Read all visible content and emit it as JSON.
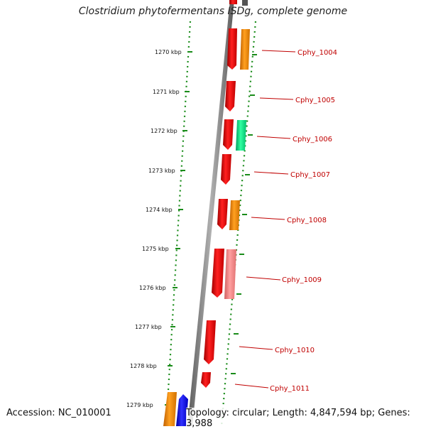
{
  "title": "Clostridium phytofermentans ISDg, complete genome",
  "accession_text": "Accession: NC_010001",
  "summary_text": "Topology: circular; Length: 4,847,594 bp; Genes: 3,988",
  "colors": {
    "backbone": "#808080",
    "ruler_dots": "#1a8c1a",
    "ruler_ticks": "#1a8c1a",
    "gene_red": "#ff0000",
    "gene_orange": "#ff8c00",
    "gene_green": "#00e68a",
    "gene_pink": "#f08080",
    "gene_blue": "#0000ff",
    "label": "#c00000"
  },
  "ruler": {
    "ticks": [
      "1270 kbp",
      "1271 kbp",
      "1272 kbp",
      "1273 kbp",
      "1274 kbp",
      "1275 kbp",
      "1276 kbp",
      "1277 kbp",
      "1278 kbp",
      "1279 kbp"
    ]
  },
  "genes": [
    {
      "label": "Cphy_1004",
      "color": "red"
    },
    {
      "label": "Cphy_1005",
      "color": "red"
    },
    {
      "label": "Cphy_1006",
      "color": "red"
    },
    {
      "label": "Cphy_1007",
      "color": "red"
    },
    {
      "label": "Cphy_1008",
      "color": "red"
    },
    {
      "label": "Cphy_1009",
      "color": "red"
    },
    {
      "label": "Cphy_1010",
      "color": "red"
    },
    {
      "label": "Cphy_1011",
      "color": "red"
    }
  ]
}
